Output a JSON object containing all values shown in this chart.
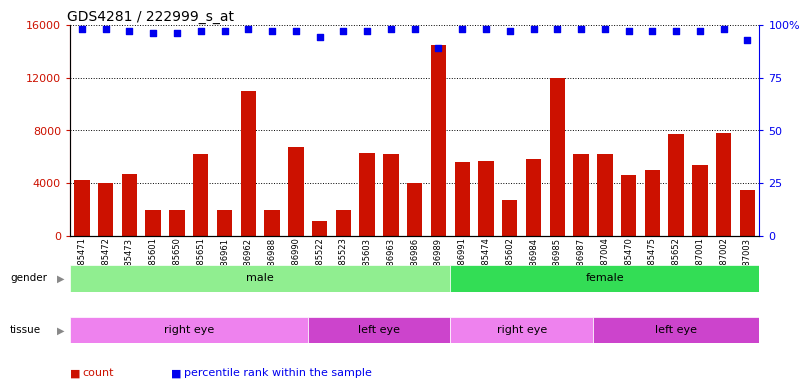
{
  "title": "GDS4281 / 222999_s_at",
  "samples": [
    "GSM685471",
    "GSM685472",
    "GSM685473",
    "GSM685601",
    "GSM685650",
    "GSM685651",
    "GSM686961",
    "GSM686962",
    "GSM686988",
    "GSM686990",
    "GSM685522",
    "GSM685523",
    "GSM685603",
    "GSM686963",
    "GSM686986",
    "GSM686989",
    "GSM686991",
    "GSM685474",
    "GSM685602",
    "GSM686984",
    "GSM686985",
    "GSM686987",
    "GSM687004",
    "GSM685470",
    "GSM685475",
    "GSM685652",
    "GSM687001",
    "GSM687002",
    "GSM687003"
  ],
  "counts": [
    4200,
    4000,
    4700,
    2000,
    2000,
    6200,
    2000,
    11000,
    2000,
    6700,
    1100,
    2000,
    6300,
    6200,
    4000,
    14500,
    5600,
    5700,
    2700,
    5800,
    12000,
    6200,
    6200,
    4600,
    5000,
    7700,
    5400,
    7800,
    3500
  ],
  "percentiles": [
    98,
    98,
    97,
    96,
    96,
    97,
    97,
    98,
    97,
    97,
    94,
    97,
    97,
    98,
    98,
    89,
    98,
    98,
    97,
    98,
    98,
    98,
    98,
    97,
    97,
    97,
    97,
    98,
    93
  ],
  "gender_groups": [
    {
      "label": "male",
      "start": 0,
      "end": 16,
      "color": "#90EE90"
    },
    {
      "label": "female",
      "start": 16,
      "end": 29,
      "color": "#33DD55"
    }
  ],
  "tissue_groups": [
    {
      "label": "right eye",
      "start": 0,
      "end": 10,
      "color": "#EE82EE"
    },
    {
      "label": "left eye",
      "start": 10,
      "end": 16,
      "color": "#CC44CC"
    },
    {
      "label": "right eye",
      "start": 16,
      "end": 22,
      "color": "#EE82EE"
    },
    {
      "label": "left eye",
      "start": 22,
      "end": 29,
      "color": "#CC44CC"
    }
  ],
  "bar_color": "#CC1100",
  "dot_color": "#0000EE",
  "ylim_left": [
    0,
    16000
  ],
  "ylim_right": [
    0,
    100
  ],
  "yticks_left": [
    0,
    4000,
    8000,
    12000,
    16000
  ],
  "yticks_right": [
    0,
    25,
    50,
    75,
    100
  ],
  "legend_items": [
    {
      "color": "#CC1100",
      "label": "count"
    },
    {
      "color": "#0000EE",
      "label": "percentile rank within the sample"
    }
  ]
}
